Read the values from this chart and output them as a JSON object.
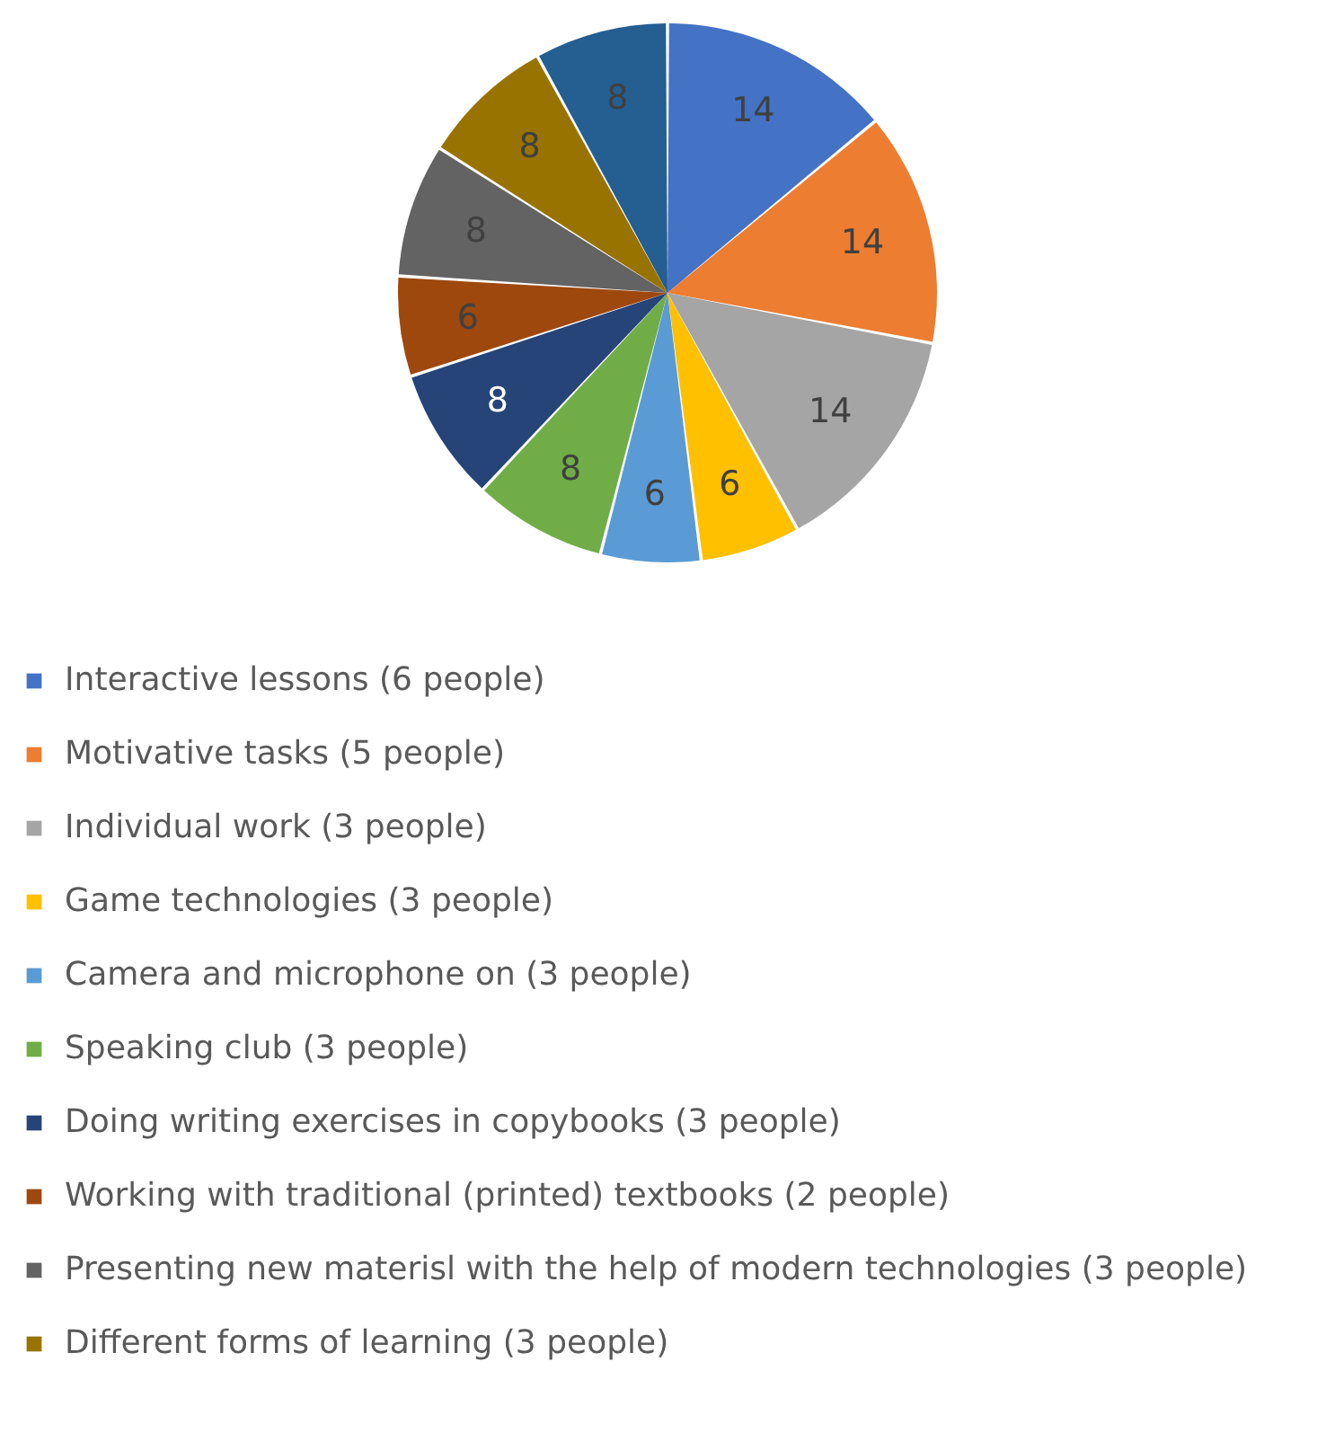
{
  "chart_data": {
    "type": "pie",
    "categories": [
      "Interactive lessons (6 people)",
      "Motivative tasks (5 people)",
      "Individual work (3 people)",
      "Game technologies (3 people)",
      "Camera and microphone on (3 people)",
      "Speaking club (3 people)",
      "Doing writing exercises in copybooks (3 people)",
      "Working with traditional (printed) textbooks (2 people)",
      "Presenting new materisl with the help of modern technologies (3 people)",
      "Different forms of learning (3 people)",
      null
    ],
    "values": [
      14,
      14,
      14,
      6,
      6,
      8,
      8,
      6,
      8,
      8,
      8
    ],
    "colors": [
      "#4472c4",
      "#ed7d31",
      "#a5a5a5",
      "#ffc000",
      "#5b9bd5",
      "#70ad47",
      "#264478",
      "#9e480e",
      "#636363",
      "#997300",
      "#255e91"
    ],
    "data_labels": true,
    "legend": "bottom"
  }
}
